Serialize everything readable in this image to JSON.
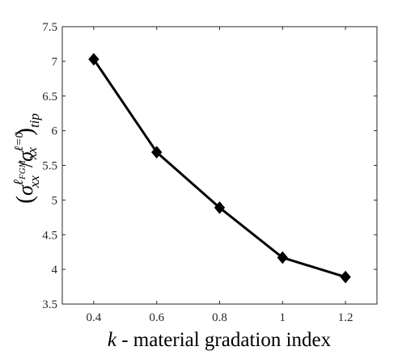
{
  "chart_data": {
    "type": "line",
    "title": "",
    "xlabel_var": "k",
    "xlabel_text": " - material gradation index",
    "ylabel": {
      "sym": "σ",
      "sub": "xx",
      "num_sup_main": "ℓ",
      "num_sup_sub": "FGM",
      "den_sup": "ℓ=0",
      "outer_sub": "tip"
    },
    "x": [
      0.4,
      0.6,
      0.8,
      1.0,
      1.2
    ],
    "y": [
      7.03,
      5.69,
      4.89,
      4.17,
      3.89
    ],
    "xlim": [
      0.3,
      1.3
    ],
    "ylim": [
      3.5,
      7.5
    ],
    "xticks": [
      0.4,
      0.6,
      0.8,
      1.0,
      1.2
    ],
    "xtick_labels": [
      "0.4",
      "0.6",
      "0.8",
      "1",
      "1.2"
    ],
    "yticks": [
      3.5,
      4,
      4.5,
      5,
      5.5,
      6,
      6.5,
      7,
      7.5
    ],
    "ytick_labels": [
      "3.5",
      "4",
      "4.5",
      "5",
      "5.5",
      "6",
      "6.5",
      "7",
      "7.5"
    ],
    "marker": "diamond",
    "line_color": "#000000",
    "grid": false,
    "box": true
  }
}
